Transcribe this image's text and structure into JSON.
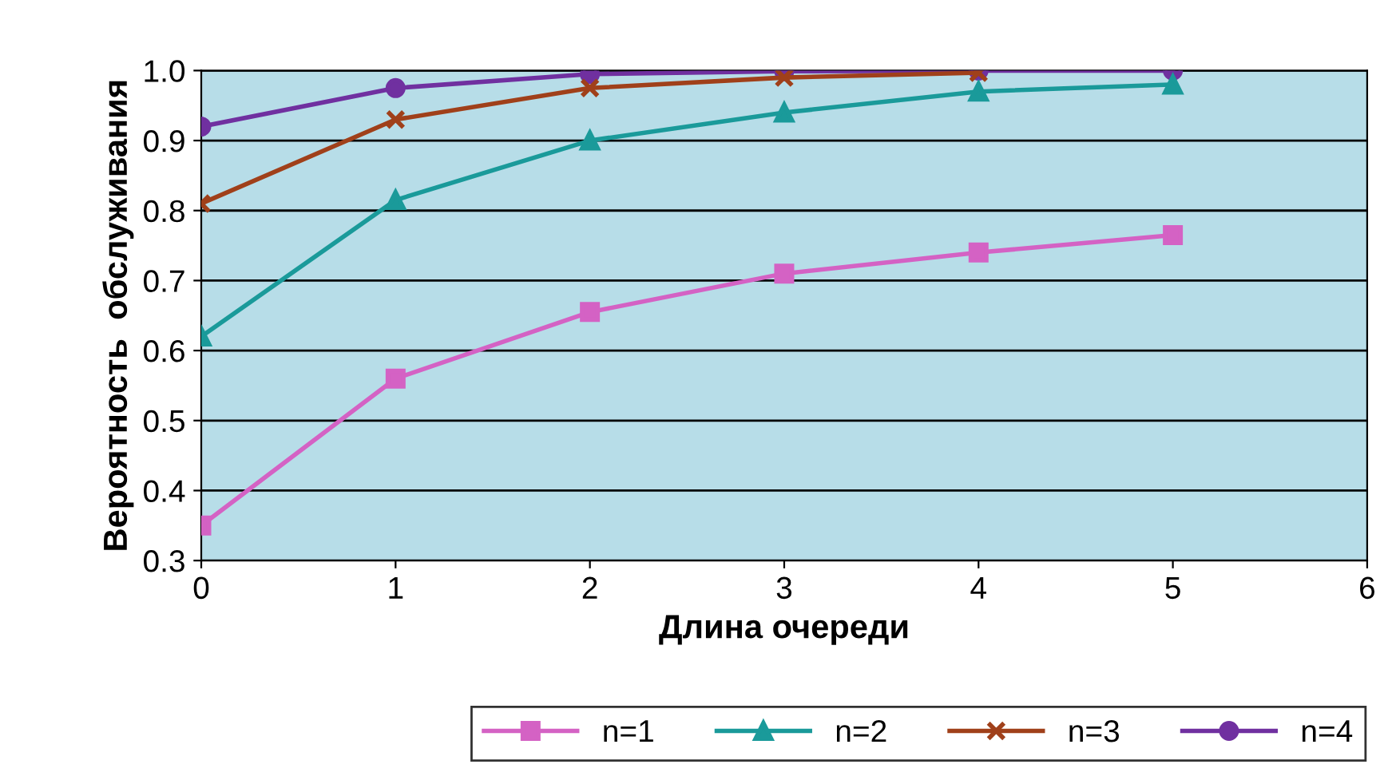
{
  "chart_data": {
    "type": "line",
    "xlabel": "Длина очереди",
    "ylabel": "Вероятность  обслуживания",
    "x": [
      0,
      1,
      2,
      3,
      4,
      5
    ],
    "series": [
      {
        "name": "n=1",
        "color": "#d462c4",
        "marker": "square",
        "values": [
          0.35,
          0.56,
          0.655,
          0.71,
          0.74,
          0.765
        ]
      },
      {
        "name": "n=2",
        "color": "#1a9a9a",
        "marker": "triangle",
        "values": [
          0.62,
          0.815,
          0.9,
          0.94,
          0.97,
          0.98
        ]
      },
      {
        "name": "n=3",
        "color": "#a0401a",
        "marker": "cross",
        "values": [
          0.81,
          0.93,
          0.975,
          0.99,
          0.997,
          null
        ]
      },
      {
        "name": "n=4",
        "color": "#7030a0",
        "marker": "circle",
        "values": [
          0.92,
          0.975,
          0.995,
          0.999,
          1.0,
          1.0
        ]
      }
    ],
    "xlim": [
      0,
      6
    ],
    "xticks": [
      0,
      1,
      2,
      3,
      4,
      5,
      6
    ],
    "ylim": [
      0.3,
      1.0
    ],
    "yticks": [
      0.3,
      0.4,
      0.5,
      0.6,
      0.7,
      0.8,
      0.9,
      {
        "value": 1.0,
        "label": "1.0"
      }
    ],
    "grid": "y",
    "legend": "bottom",
    "line_style": "solid"
  }
}
